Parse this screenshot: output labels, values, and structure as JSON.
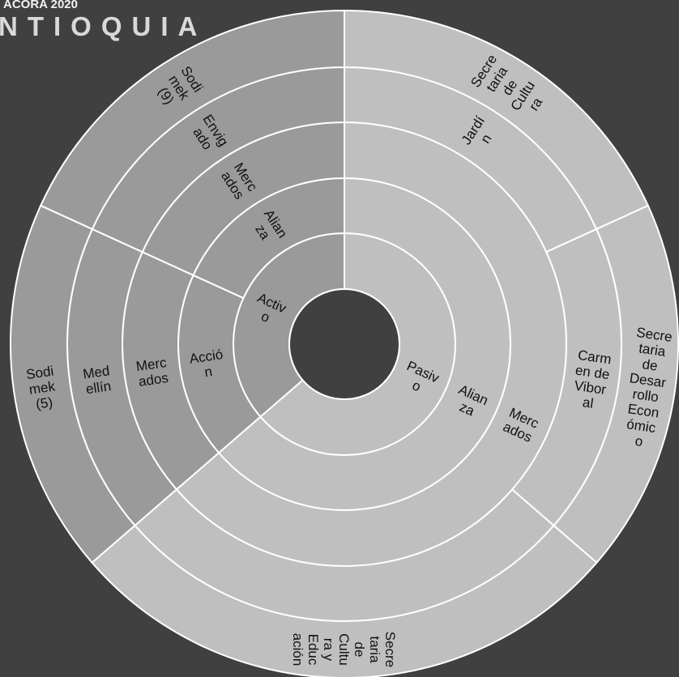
{
  "header": {
    "subtitle": "ACORA 2020",
    "title": "NTIOQUIA"
  },
  "colors": {
    "background": "#404040",
    "active_ring": "#9a9a9a",
    "passive_ring": "#bfbfbf",
    "separator": "#ffffff"
  },
  "chart_data": {
    "type": "sunburst",
    "ring_order": [
      "type",
      "category",
      "channel",
      "locality",
      "entity"
    ],
    "center_hole": true,
    "nodes": [
      {
        "id": "activo",
        "parent": null,
        "label": "Activo",
        "value": 4,
        "group": "active"
      },
      {
        "id": "pasivo",
        "parent": null,
        "label": "Pasivo",
        "value": 7,
        "group": "passive"
      },
      {
        "id": "a_accion",
        "parent": "activo",
        "label": "Acción",
        "value": 2
      },
      {
        "id": "a_alianza",
        "parent": "activo",
        "label": "Alianza",
        "value": 2
      },
      {
        "id": "a_merc1",
        "parent": "a_accion",
        "label": "Mercados",
        "value": 2
      },
      {
        "id": "a_merc2",
        "parent": "a_alianza",
        "label": "Mercados",
        "value": 2
      },
      {
        "id": "a_medellin",
        "parent": "a_merc1",
        "label": "Medellín",
        "value": 2
      },
      {
        "id": "a_envigado",
        "parent": "a_merc2",
        "label": "Envigado",
        "value": 2
      },
      {
        "id": "a_sodimek5",
        "parent": "a_medellin",
        "label": "Sodimek (5)",
        "value": 2
      },
      {
        "id": "a_sodimek9",
        "parent": "a_envigado",
        "label": "Sodimek (9)",
        "value": 2
      },
      {
        "id": "p_alianza",
        "parent": "pasivo",
        "label": "Alianza",
        "value": 7
      },
      {
        "id": "p_mercados",
        "parent": "p_alianza",
        "label": "Mercados",
        "value": 7
      },
      {
        "id": "p_jardin",
        "parent": "p_mercados",
        "label": "Jardín",
        "value": 2
      },
      {
        "id": "p_carmen",
        "parent": "p_mercados",
        "label": "Carmen de Viboral",
        "value": 2
      },
      {
        "id": "p_blank",
        "parent": "p_mercados",
        "label": "",
        "value": 3
      },
      {
        "id": "p_scultura",
        "parent": "p_jardin",
        "label": "Secretaria de Cultura",
        "value": 2
      },
      {
        "id": "p_sdesarrollo",
        "parent": "p_carmen",
        "label": "Secretaria de Desarrollo Económico",
        "value": 2
      },
      {
        "id": "p_sce",
        "parent": "p_blank",
        "label": "Secretaria de Cultura y Educación",
        "value": 3
      }
    ]
  },
  "labels": {
    "activo": [
      "Activ",
      "o"
    ],
    "pasivo": [
      "Pasiv",
      "o"
    ],
    "a_accion": [
      "Acció",
      "n"
    ],
    "a_alianza": [
      "Alian",
      "za"
    ],
    "p_alianza": [
      "Alian",
      "za"
    ],
    "a_merc1": [
      "Merc",
      "ados"
    ],
    "a_merc2": [
      "Merc",
      "ados"
    ],
    "p_mercados": [
      "Merc",
      "ados"
    ],
    "a_medellin": [
      "Med",
      "ellín"
    ],
    "a_envigado": [
      "Envig",
      "ado"
    ],
    "p_jardin": [
      "Jardí",
      "n"
    ],
    "p_carmen": [
      "Carm",
      "en de",
      "Vibor",
      "al"
    ],
    "a_sodimek5": [
      "Sodi",
      "mek",
      "(5)"
    ],
    "a_sodimek9": [
      "Sodi",
      "mek",
      "(9)"
    ],
    "p_scultura": [
      "Secre",
      "taria",
      "de",
      "Cultu",
      "ra"
    ],
    "p_sdesarrollo": [
      "Secre",
      "taria",
      "de",
      "Desar",
      "rollo",
      "Econ",
      "ómic",
      "o"
    ],
    "p_sce": [
      "Secre",
      "taria",
      "de",
      "Cultu",
      "ra y",
      "Educ",
      "ación"
    ]
  }
}
